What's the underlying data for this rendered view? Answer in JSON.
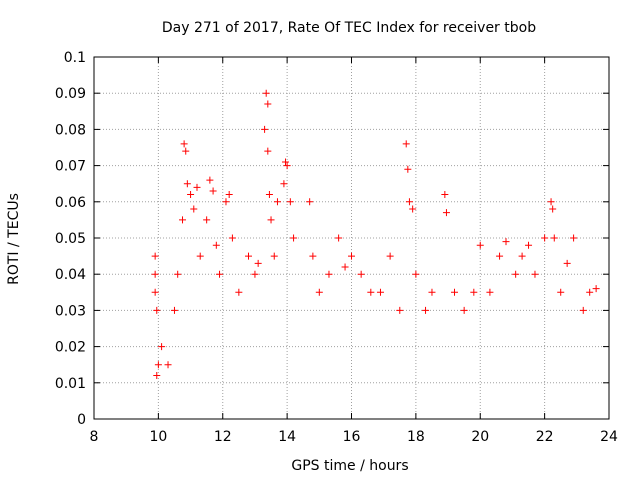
{
  "chart_data": {
    "type": "scatter",
    "title": "Day 271 of 2017, Rate Of TEC Index for receiver tbob",
    "xlabel": "GPS time / hours",
    "ylabel": "ROTI / TECUs",
    "xlim": [
      8,
      24
    ],
    "ylim": [
      0,
      0.1
    ],
    "xticks": [
      "8",
      "10",
      "12",
      "14",
      "16",
      "18",
      "20",
      "22",
      "24"
    ],
    "yticks": [
      "0",
      "0.01",
      "0.02",
      "0.03",
      "0.04",
      "0.05",
      "0.06",
      "0.07",
      "0.08",
      "0.09",
      "0.1"
    ],
    "grid": true,
    "marker": "+",
    "color": "#ff0000",
    "series": [
      {
        "x": [
          9.9,
          9.9,
          9.9,
          9.95,
          9.95,
          10.0,
          10.1,
          10.3,
          10.5,
          10.6,
          10.75,
          10.8,
          10.85,
          10.9,
          11.0,
          11.1,
          11.2,
          11.3,
          11.5,
          11.6,
          11.7,
          11.8,
          11.9,
          12.1,
          12.2,
          12.3,
          12.5,
          12.8,
          13.0,
          13.1,
          13.3,
          13.35,
          13.4,
          13.4,
          13.45,
          13.5,
          13.6,
          13.7,
          13.9,
          13.95,
          14.0,
          14.1,
          14.2,
          14.7,
          14.8,
          15.0,
          15.3,
          15.6,
          15.8,
          16.0,
          16.3,
          16.6,
          16.9,
          17.2,
          17.5,
          17.7,
          17.75,
          17.8,
          17.9,
          18.0,
          18.3,
          18.5,
          18.9,
          18.95,
          19.2,
          19.5,
          19.8,
          20.0,
          20.3,
          20.6,
          20.8,
          21.1,
          21.3,
          21.5,
          21.7,
          22.0,
          22.2,
          22.25,
          22.3,
          22.5,
          22.7,
          22.9,
          23.2,
          23.4,
          23.6
        ],
        "y": [
          0.045,
          0.04,
          0.035,
          0.03,
          0.012,
          0.015,
          0.02,
          0.015,
          0.03,
          0.04,
          0.055,
          0.076,
          0.074,
          0.065,
          0.062,
          0.058,
          0.064,
          0.045,
          0.055,
          0.066,
          0.063,
          0.048,
          0.04,
          0.06,
          0.062,
          0.05,
          0.035,
          0.045,
          0.04,
          0.043,
          0.08,
          0.09,
          0.087,
          0.074,
          0.062,
          0.055,
          0.045,
          0.06,
          0.065,
          0.071,
          0.07,
          0.06,
          0.05,
          0.06,
          0.045,
          0.035,
          0.04,
          0.05,
          0.042,
          0.045,
          0.04,
          0.035,
          0.035,
          0.045,
          0.03,
          0.076,
          0.069,
          0.06,
          0.058,
          0.04,
          0.03,
          0.035,
          0.062,
          0.057,
          0.035,
          0.03,
          0.035,
          0.048,
          0.035,
          0.045,
          0.049,
          0.04,
          0.045,
          0.048,
          0.04,
          0.05,
          0.06,
          0.058,
          0.05,
          0.035,
          0.043,
          0.05,
          0.03,
          0.035,
          0.036
        ]
      }
    ]
  }
}
